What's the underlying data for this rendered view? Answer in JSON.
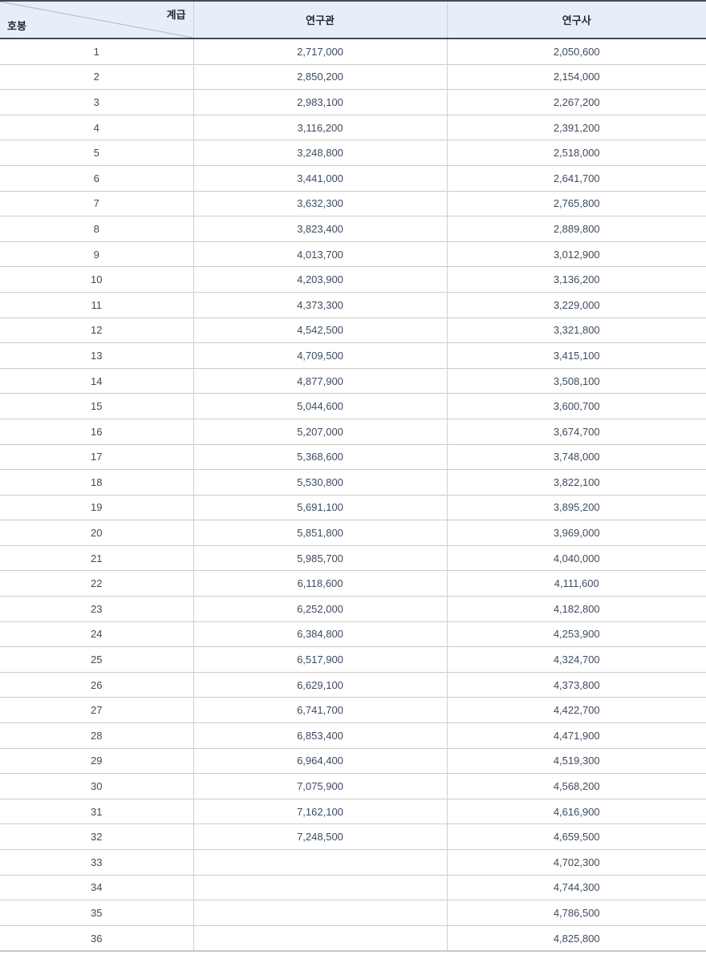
{
  "colors": {
    "header_bg": "#e8eef9",
    "header_text": "#222a36",
    "body_text": "#3d4c60",
    "row_border": "#cbcbcb",
    "column_border": "#d0d0d0",
    "dark_rule": "#3b4d63",
    "bottom_rule": "#c3cad3",
    "diagonal_line": "#b0b8c3"
  },
  "table": {
    "corner": {
      "top_right_label": "계급",
      "bottom_left_label": "호봉"
    },
    "columns": [
      "연구관",
      "연구사"
    ],
    "rows": [
      {
        "step": "1",
        "yeonguwan": "2,717,000",
        "yeongusa": "2,050,600"
      },
      {
        "step": "2",
        "yeonguwan": "2,850,200",
        "yeongusa": "2,154,000"
      },
      {
        "step": "3",
        "yeonguwan": "2,983,100",
        "yeongusa": "2,267,200"
      },
      {
        "step": "4",
        "yeonguwan": "3,116,200",
        "yeongusa": "2,391,200"
      },
      {
        "step": "5",
        "yeonguwan": "3,248,800",
        "yeongusa": "2,518,000"
      },
      {
        "step": "6",
        "yeonguwan": "3,441,000",
        "yeongusa": "2,641,700"
      },
      {
        "step": "7",
        "yeonguwan": "3,632,300",
        "yeongusa": "2,765,800"
      },
      {
        "step": "8",
        "yeonguwan": "3,823,400",
        "yeongusa": "2,889,800"
      },
      {
        "step": "9",
        "yeonguwan": "4,013,700",
        "yeongusa": "3,012,900"
      },
      {
        "step": "10",
        "yeonguwan": "4,203,900",
        "yeongusa": "3,136,200"
      },
      {
        "step": "11",
        "yeonguwan": "4,373,300",
        "yeongusa": "3,229,000"
      },
      {
        "step": "12",
        "yeonguwan": "4,542,500",
        "yeongusa": "3,321,800"
      },
      {
        "step": "13",
        "yeonguwan": "4,709,500",
        "yeongusa": "3,415,100"
      },
      {
        "step": "14",
        "yeonguwan": "4,877,900",
        "yeongusa": "3,508,100"
      },
      {
        "step": "15",
        "yeonguwan": "5,044,600",
        "yeongusa": "3,600,700"
      },
      {
        "step": "16",
        "yeonguwan": "5,207,000",
        "yeongusa": "3,674,700"
      },
      {
        "step": "17",
        "yeonguwan": "5,368,600",
        "yeongusa": "3,748,000"
      },
      {
        "step": "18",
        "yeonguwan": "5,530,800",
        "yeongusa": "3,822,100"
      },
      {
        "step": "19",
        "yeonguwan": "5,691,100",
        "yeongusa": "3,895,200"
      },
      {
        "step": "20",
        "yeonguwan": "5,851,800",
        "yeongusa": "3,969,000"
      },
      {
        "step": "21",
        "yeonguwan": "5,985,700",
        "yeongusa": "4,040,000"
      },
      {
        "step": "22",
        "yeonguwan": "6,118,600",
        "yeongusa": "4,111,600"
      },
      {
        "step": "23",
        "yeonguwan": "6,252,000",
        "yeongusa": "4,182,800"
      },
      {
        "step": "24",
        "yeonguwan": "6,384,800",
        "yeongusa": "4,253,900"
      },
      {
        "step": "25",
        "yeonguwan": "6,517,900",
        "yeongusa": "4,324,700"
      },
      {
        "step": "26",
        "yeonguwan": "6,629,100",
        "yeongusa": "4,373,800"
      },
      {
        "step": "27",
        "yeonguwan": "6,741,700",
        "yeongusa": "4,422,700"
      },
      {
        "step": "28",
        "yeonguwan": "6,853,400",
        "yeongusa": "4,471,900"
      },
      {
        "step": "29",
        "yeonguwan": "6,964,400",
        "yeongusa": "4,519,300"
      },
      {
        "step": "30",
        "yeonguwan": "7,075,900",
        "yeongusa": "4,568,200"
      },
      {
        "step": "31",
        "yeonguwan": "7,162,100",
        "yeongusa": "4,616,900"
      },
      {
        "step": "32",
        "yeonguwan": "7,248,500",
        "yeongusa": "4,659,500"
      },
      {
        "step": "33",
        "yeonguwan": "",
        "yeongusa": "4,702,300"
      },
      {
        "step": "34",
        "yeonguwan": "",
        "yeongusa": "4,744,300"
      },
      {
        "step": "35",
        "yeonguwan": "",
        "yeongusa": "4,786,500"
      },
      {
        "step": "36",
        "yeonguwan": "",
        "yeongusa": "4,825,800"
      }
    ]
  }
}
